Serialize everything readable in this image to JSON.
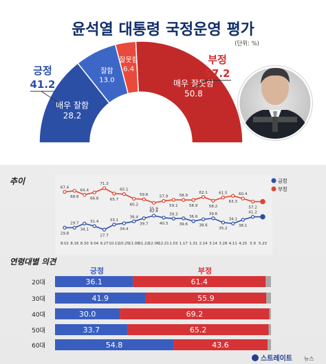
{
  "title": "윤석열 대통령 국정운영 평가",
  "unit": "(단위: %)",
  "colors": {
    "positive": "#2c4fa6",
    "positive_light": "#3d67c7",
    "negative": "#c22a2a",
    "negative_light": "#e84a3c",
    "rest": "#a8a8a8",
    "heading": "#0f2d69"
  },
  "photo": {
    "alt": "president-photo"
  },
  "chart_data": [
    {
      "type": "pie",
      "variant": "half-donut",
      "title": "윤석열 대통령 국정운영 평가",
      "groups": [
        {
          "name": "긍정",
          "value": "41.2"
        },
        {
          "name": "부정",
          "value": "57.2"
        }
      ],
      "slices": [
        {
          "name": "매우 잘함",
          "value": 28.2,
          "value_label": "28.2",
          "group": "긍정"
        },
        {
          "name": "잘함",
          "value": 13.0,
          "value_label": "13.0",
          "group": "긍정"
        },
        {
          "name": "잘못함",
          "value": 6.4,
          "value_label": "6.4",
          "group": "부정"
        },
        {
          "name": "매우 잘못함",
          "value": 50.8,
          "value_label": "50.8",
          "group": "부정"
        }
      ]
    },
    {
      "type": "line",
      "title": "추이",
      "categories": [
        "8.02",
        "8.16",
        "8.30",
        "9.04",
        "9.27",
        "10.11",
        "10.25",
        "11.08",
        "11.22",
        "12.06",
        "12.21",
        "1.03",
        "1.17",
        "1.31",
        "2.14",
        "3.14",
        "3.28",
        "4.11",
        "4.25",
        "5.9",
        "5.23"
      ],
      "ylim": [
        20,
        80
      ],
      "legend": "top-right",
      "series": [
        {
          "name": "긍정",
          "color": "#2c4fa6",
          "values": [
            29.8,
            29.7,
            34.1,
            31.4,
            27.7,
            33.1,
            34.4,
            36.4,
            39.7,
            42.4,
            40.3,
            39.3,
            39.6,
            36.6,
            38.6,
            39.6,
            35.2,
            34.1,
            38.1,
            41.2,
            41.2
          ],
          "labels": [
            "29.8",
            "29.7",
            "34.1",
            "31.4",
            "27.7",
            "33.1",
            "34.4",
            "36.4",
            "39.7",
            "42.4",
            "40.3",
            "39.3",
            "39.6",
            "36.6",
            "38.6",
            "39.6",
            "35.2",
            "34.1",
            "38.1",
            "41.2",
            ""
          ]
        },
        {
          "name": "부정",
          "color": "#e0452f",
          "values": [
            67.4,
            68.6,
            64.4,
            66.8,
            71.3,
            65.7,
            65.1,
            60.2,
            59.6,
            55.9,
            57.9,
            59.1,
            58.9,
            58.9,
            62.1,
            58.2,
            61.5,
            63.3,
            60.4,
            57.2,
            57.2
          ],
          "labels": [
            "67.4",
            "68.6",
            "64.4",
            "66.8",
            "71.3",
            "65.7",
            "65.1",
            "60.2",
            "59.6",
            "55.9",
            "57.9",
            "59.1",
            "58.9",
            "58.9",
            "62.1",
            "58.2",
            "61.5",
            "63.3",
            "60.4",
            "57.2",
            ""
          ]
        }
      ]
    },
    {
      "type": "bar",
      "orientation": "horizontal-stacked",
      "title": "연령대별 의견",
      "legend": "top",
      "categories": [
        "20대",
        "30대",
        "40대",
        "50대",
        "60대"
      ],
      "series": [
        {
          "name": "긍정",
          "color": "#3a5ebf",
          "values": [
            36.1,
            41.9,
            30.0,
            33.7,
            54.8
          ],
          "labels": [
            "36.1",
            "41.9",
            "30.0",
            "33.7",
            "54.8"
          ]
        },
        {
          "name": "부정",
          "color": "#d63336",
          "values": [
            61.4,
            55.9,
            69.2,
            65.2,
            43.6
          ],
          "labels": [
            "61.4",
            "55.9",
            "69.2",
            "65.2",
            "43.6"
          ]
        }
      ],
      "xlim": [
        0,
        100
      ]
    }
  ],
  "footer": {
    "brand": "스트레이트",
    "brand_suffix": "뉴스"
  }
}
